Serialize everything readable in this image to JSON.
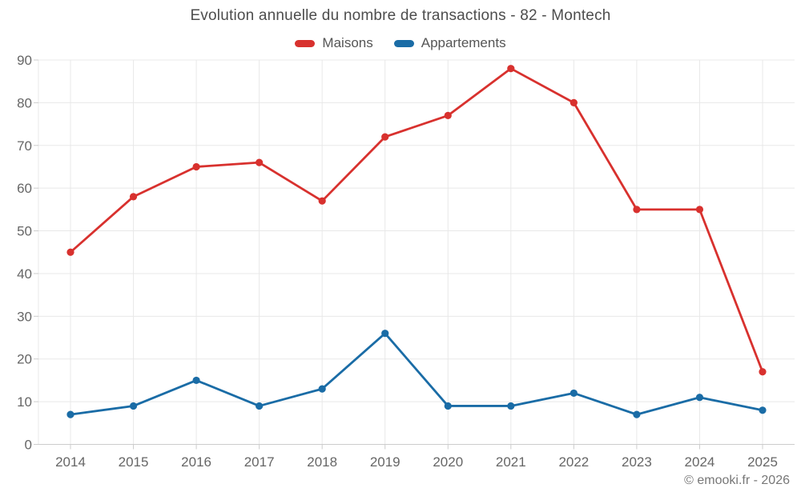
{
  "title": "Evolution annuelle du nombre de transactions - 82 - Montech",
  "footer": "© emooki.fr - 2026",
  "chart_data": {
    "type": "line",
    "title": "Evolution annuelle du nombre de transactions - 82 - Montech",
    "categories": [
      "2014",
      "2015",
      "2016",
      "2017",
      "2018",
      "2019",
      "2020",
      "2021",
      "2022",
      "2023",
      "2024",
      "2025"
    ],
    "series": [
      {
        "name": "Maisons",
        "color": "#d8312e",
        "values": [
          45,
          58,
          65,
          66,
          57,
          72,
          77,
          88,
          80,
          55,
          55,
          17
        ]
      },
      {
        "name": "Appartements",
        "color": "#1a6ca6",
        "values": [
          7,
          9,
          15,
          9,
          13,
          26,
          9,
          9,
          12,
          7,
          11,
          8
        ]
      }
    ],
    "ylim": [
      0,
      90
    ],
    "yticks": [
      0,
      10,
      20,
      30,
      40,
      50,
      60,
      70,
      80,
      90
    ],
    "grid": true,
    "legend_position": "top",
    "grid_color": "#e8e8e8",
    "axis_color": "#cccccc",
    "tick_label_color": "#666666"
  }
}
